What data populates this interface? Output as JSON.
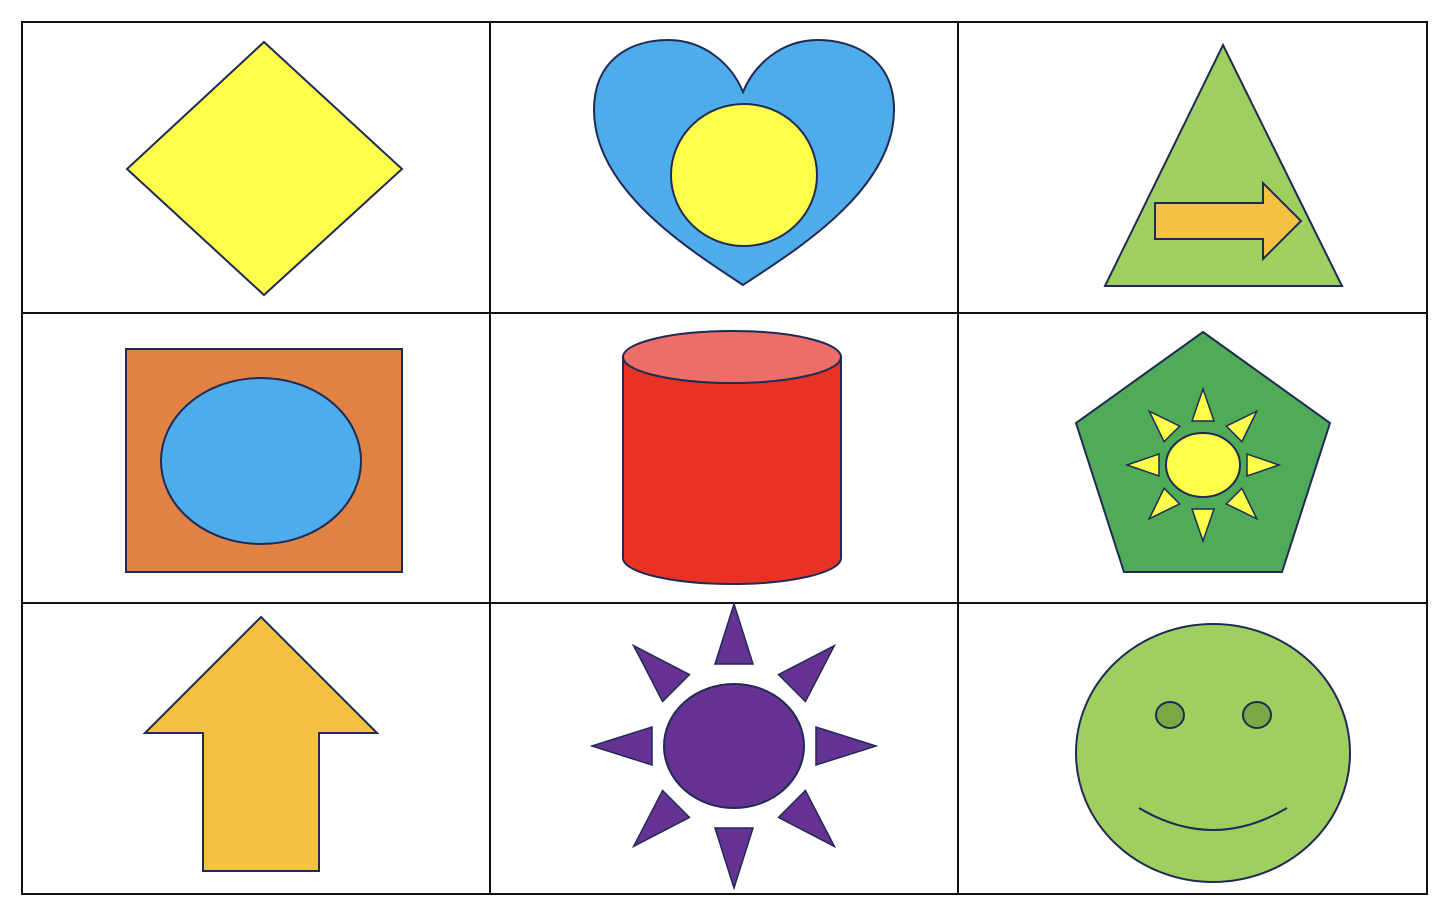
{
  "colors": {
    "background": "#ffffff",
    "grid_line": "#111111",
    "outline": "#1f2a55",
    "yellow": "#fefd4b",
    "light_blue": "#4facea",
    "light_green": "#9fcf5f",
    "orange_arrow": "#f4c142",
    "brown_orange": "#df8243",
    "red": "#e83224",
    "pink_red": "#ed6e68",
    "green": "#4fab58",
    "purple": "#663394",
    "dark_green_eye": "#7aa845"
  },
  "cells": [
    {
      "shape": "yellow-diamond"
    },
    {
      "shape": "blue-heart-with-yellow-circle"
    },
    {
      "shape": "green-triangle-with-orange-arrow"
    },
    {
      "shape": "orange-rectangle-with-blue-ellipse"
    },
    {
      "shape": "red-cylinder"
    },
    {
      "shape": "green-pentagon-with-yellow-sun"
    },
    {
      "shape": "orange-up-arrow"
    },
    {
      "shape": "purple-sun"
    },
    {
      "shape": "green-smiley-face"
    }
  ]
}
